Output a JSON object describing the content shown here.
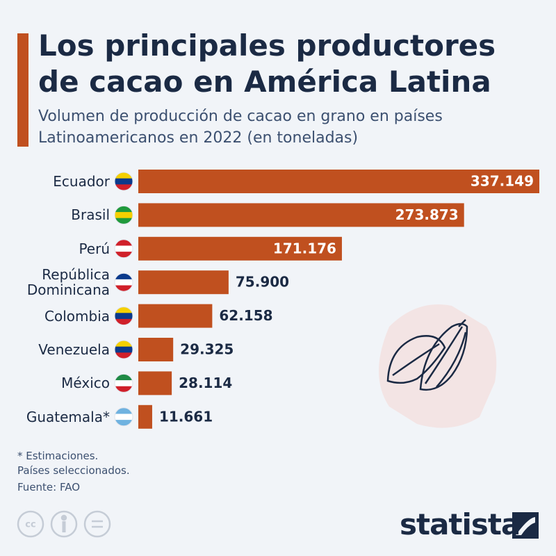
{
  "chart_data": {
    "type": "bar",
    "orientation": "horizontal",
    "title": "Los principales productores de cacao en América Latina",
    "subtitle": "Volumen de producción de cacao en grano en países Latinoamericanos en 2022 (en toneladas)",
    "categories": [
      "Ecuador",
      "Brasil",
      "Perú",
      "República Dominicana",
      "Colombia",
      "Venezuela",
      "México",
      "Guatemala*"
    ],
    "values": [
      337149,
      273873,
      171176,
      75900,
      62158,
      29325,
      28114,
      11661
    ],
    "value_labels": [
      "337.149",
      "273.873",
      "171.176",
      "75.900",
      "62.158",
      "29.325",
      "28.114",
      "11.661"
    ],
    "color": "#c0501f"
  },
  "notes": [
    "* Estimaciones.",
    "Países seleccionados."
  ],
  "source": "Fuente: FAO",
  "brand": "statista"
}
